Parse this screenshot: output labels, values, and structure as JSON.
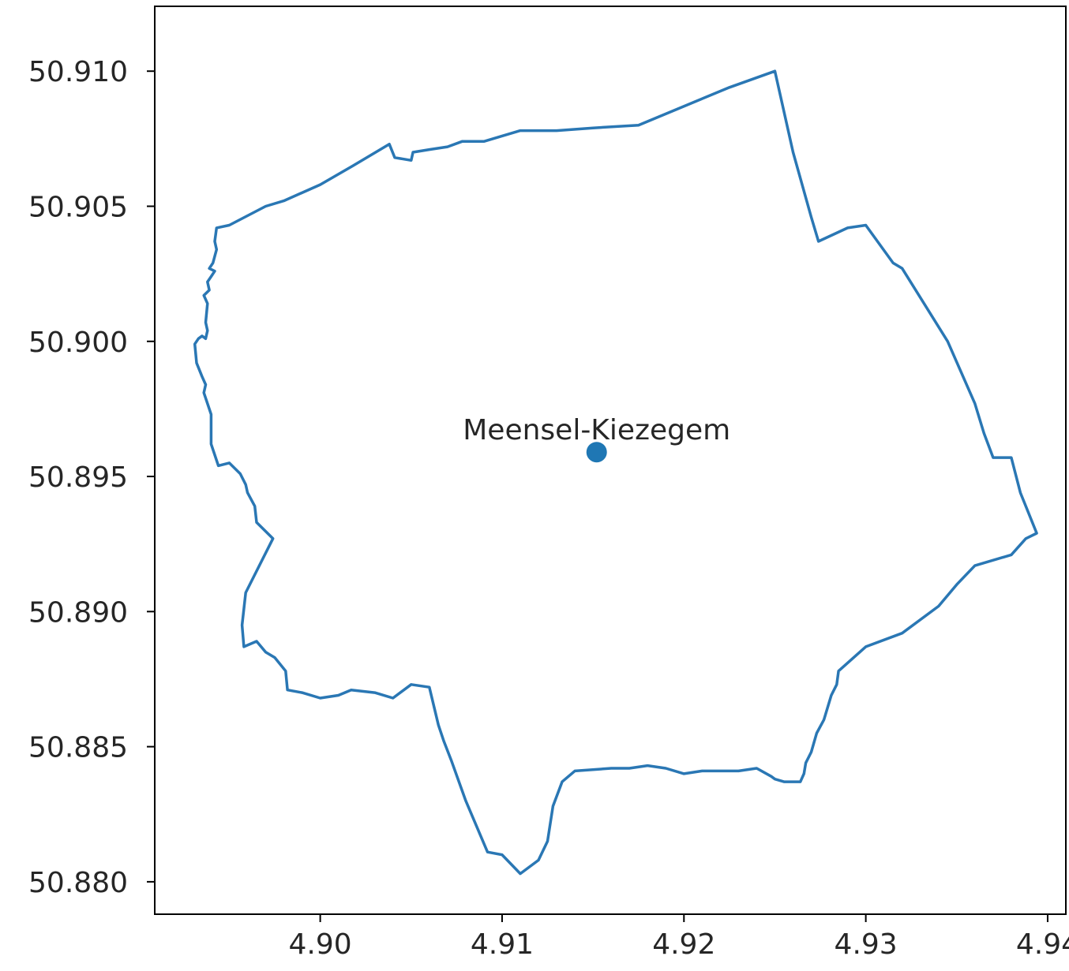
{
  "chart_data": {
    "type": "map",
    "xlim": [
      4.8909,
      4.941
    ],
    "ylim": [
      50.8788,
      50.9124
    ],
    "x_ticks": [
      "4.90",
      "4.91",
      "4.92",
      "4.93",
      "4.94"
    ],
    "x_tick_values": [
      4.9,
      4.91,
      4.92,
      4.93,
      4.94
    ],
    "y_ticks": [
      "50.880",
      "50.885",
      "50.890",
      "50.895",
      "50.900",
      "50.905",
      "50.910"
    ],
    "y_tick_values": [
      50.88,
      50.885,
      50.89,
      50.895,
      50.9,
      50.905,
      50.91
    ],
    "colors": {
      "boundary": "#2a77b4",
      "point": "#1f77b4",
      "axes": "#000000"
    },
    "point": {
      "label": "Meensel-Kiezegem",
      "x": 4.9152,
      "y": 50.8959
    },
    "boundary": [
      [
        4.925,
        50.91
      ],
      [
        4.926,
        50.907
      ],
      [
        4.927,
        50.9046
      ],
      [
        4.9274,
        50.9037
      ],
      [
        4.929,
        50.9042
      ],
      [
        4.93,
        50.9043
      ],
      [
        4.9315,
        50.9029
      ],
      [
        4.932,
        50.9027
      ],
      [
        4.9345,
        50.9
      ],
      [
        4.936,
        50.8977
      ],
      [
        4.9365,
        50.8966
      ],
      [
        4.937,
        50.8957
      ],
      [
        4.938,
        50.8957
      ],
      [
        4.9385,
        50.8944
      ],
      [
        4.9394,
        50.8929
      ],
      [
        4.9388,
        50.8927
      ],
      [
        4.938,
        50.8921
      ],
      [
        4.936,
        50.8917
      ],
      [
        4.935,
        50.891
      ],
      [
        4.934,
        50.8902
      ],
      [
        4.932,
        50.8892
      ],
      [
        4.93,
        50.8887
      ],
      [
        4.929,
        50.8881
      ],
      [
        4.9285,
        50.8878
      ],
      [
        4.9284,
        50.8873
      ],
      [
        4.9281,
        50.8869
      ],
      [
        4.9277,
        50.886
      ],
      [
        4.9273,
        50.8855
      ],
      [
        4.927,
        50.8848
      ],
      [
        4.9267,
        50.8844
      ],
      [
        4.9266,
        50.884
      ],
      [
        4.9264,
        50.8837
      ],
      [
        4.9255,
        50.8837
      ],
      [
        4.925,
        50.8838
      ],
      [
        4.9248,
        50.8839
      ],
      [
        4.924,
        50.8842
      ],
      [
        4.923,
        50.8841
      ],
      [
        4.921,
        50.8841
      ],
      [
        4.92,
        50.884
      ],
      [
        4.919,
        50.8842
      ],
      [
        4.918,
        50.8843
      ],
      [
        4.917,
        50.8842
      ],
      [
        4.916,
        50.8842
      ],
      [
        4.914,
        50.8841
      ],
      [
        4.9133,
        50.8837
      ],
      [
        4.9128,
        50.8828
      ],
      [
        4.9125,
        50.8815
      ],
      [
        4.912,
        50.8808
      ],
      [
        4.911,
        50.8803
      ],
      [
        4.91,
        50.881
      ],
      [
        4.9092,
        50.8811
      ],
      [
        4.908,
        50.883
      ],
      [
        4.9072,
        50.8845
      ],
      [
        4.9068,
        50.8852
      ],
      [
        4.9065,
        50.8858
      ],
      [
        4.906,
        50.8872
      ],
      [
        4.905,
        50.8873
      ],
      [
        4.904,
        50.8868
      ],
      [
        4.903,
        50.887
      ],
      [
        4.9017,
        50.8871
      ],
      [
        4.901,
        50.8869
      ],
      [
        4.9,
        50.8868
      ],
      [
        4.899,
        50.887
      ],
      [
        4.8982,
        50.8871
      ],
      [
        4.8981,
        50.8878
      ],
      [
        4.8975,
        50.8883
      ],
      [
        4.897,
        50.8885
      ],
      [
        4.8965,
        50.8889
      ],
      [
        4.8958,
        50.8887
      ],
      [
        4.8957,
        50.8895
      ],
      [
        4.8958,
        50.8901
      ],
      [
        4.8959,
        50.8907
      ],
      [
        4.8974,
        50.8927
      ],
      [
        4.8965,
        50.8933
      ],
      [
        4.8964,
        50.8939
      ],
      [
        4.896,
        50.8944
      ],
      [
        4.8959,
        50.8947
      ],
      [
        4.8956,
        50.8951
      ],
      [
        4.895,
        50.8955
      ],
      [
        4.8944,
        50.8954
      ],
      [
        4.894,
        50.8962
      ],
      [
        4.894,
        50.8973
      ],
      [
        4.8936,
        50.8981
      ],
      [
        4.8937,
        50.8984
      ],
      [
        4.8935,
        50.8987
      ],
      [
        4.8932,
        50.8992
      ],
      [
        4.8931,
        50.8999
      ],
      [
        4.8933,
        50.9001
      ],
      [
        4.8935,
        50.9002
      ],
      [
        4.8937,
        50.9001
      ],
      [
        4.8938,
        50.9004
      ],
      [
        4.8937,
        50.9007
      ],
      [
        4.8938,
        50.9014
      ],
      [
        4.8936,
        50.9017
      ],
      [
        4.8939,
        50.9019
      ],
      [
        4.8938,
        50.9022
      ],
      [
        4.894,
        50.9024
      ],
      [
        4.8942,
        50.9026
      ],
      [
        4.8939,
        50.9027
      ],
      [
        4.8941,
        50.9029
      ],
      [
        4.8943,
        50.9034
      ],
      [
        4.8942,
        50.9037
      ],
      [
        4.8943,
        50.9042
      ],
      [
        4.895,
        50.9043
      ],
      [
        4.897,
        50.905
      ],
      [
        4.898,
        50.9052
      ],
      [
        4.9,
        50.9058
      ],
      [
        4.9018,
        50.9065
      ],
      [
        4.9038,
        50.9073
      ],
      [
        4.9041,
        50.9068
      ],
      [
        4.905,
        50.9067
      ],
      [
        4.9051,
        50.907
      ],
      [
        4.906,
        50.9071
      ],
      [
        4.907,
        50.9072
      ],
      [
        4.9078,
        50.9074
      ],
      [
        4.909,
        50.9074
      ],
      [
        4.91,
        50.9076
      ],
      [
        4.911,
        50.9078
      ],
      [
        4.913,
        50.9078
      ],
      [
        4.915,
        50.9079
      ],
      [
        4.9175,
        50.908
      ],
      [
        4.92,
        50.9087
      ],
      [
        4.9225,
        50.9094
      ],
      [
        4.925,
        50.91
      ]
    ]
  }
}
